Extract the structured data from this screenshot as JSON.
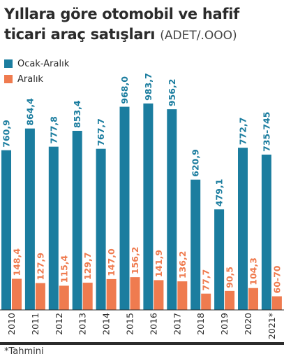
{
  "header": {
    "title_line1": "Yıllara göre otomobil ve hafif",
    "title_line2": "ticari araç satışları",
    "unit": "(ADET/.OOO)"
  },
  "footnote": "*Tahmini",
  "colors": {
    "ocak_aralik": "#1b7d9f",
    "aralik": "#ef7b4f",
    "axis": "#2b2b2b"
  },
  "chart_data": {
    "type": "bar",
    "categories": [
      "2010",
      "2011",
      "2012",
      "2013",
      "2014",
      "2015",
      "2016",
      "2017",
      "2018",
      "2019",
      "2020",
      "2021*"
    ],
    "series": [
      {
        "name": "Ocak-Aralık",
        "values": [
          760.9,
          864.4,
          777.8,
          853.4,
          767.7,
          968.0,
          983.7,
          956.2,
          620.9,
          479.1,
          772.7,
          740
        ],
        "labels": [
          "760,9",
          "864,4",
          "777,8",
          "853,4",
          "767,7",
          "968,0",
          "983,7",
          "956,2",
          "620,9",
          "479,1",
          "772,7",
          "735-745"
        ]
      },
      {
        "name": "Aralık",
        "values": [
          148.4,
          127.9,
          115.4,
          129.7,
          147.0,
          156.2,
          141.9,
          136.2,
          77.7,
          90.5,
          104.3,
          65
        ],
        "labels": [
          "148,4",
          "127,9",
          "115,4",
          "129,7",
          "147,0",
          "156,2",
          "141,9",
          "136,2",
          "77,7",
          "90,5",
          "104,3",
          "60-70"
        ]
      }
    ],
    "ylim": [
      0,
      1000
    ],
    "legend": "top-left"
  }
}
